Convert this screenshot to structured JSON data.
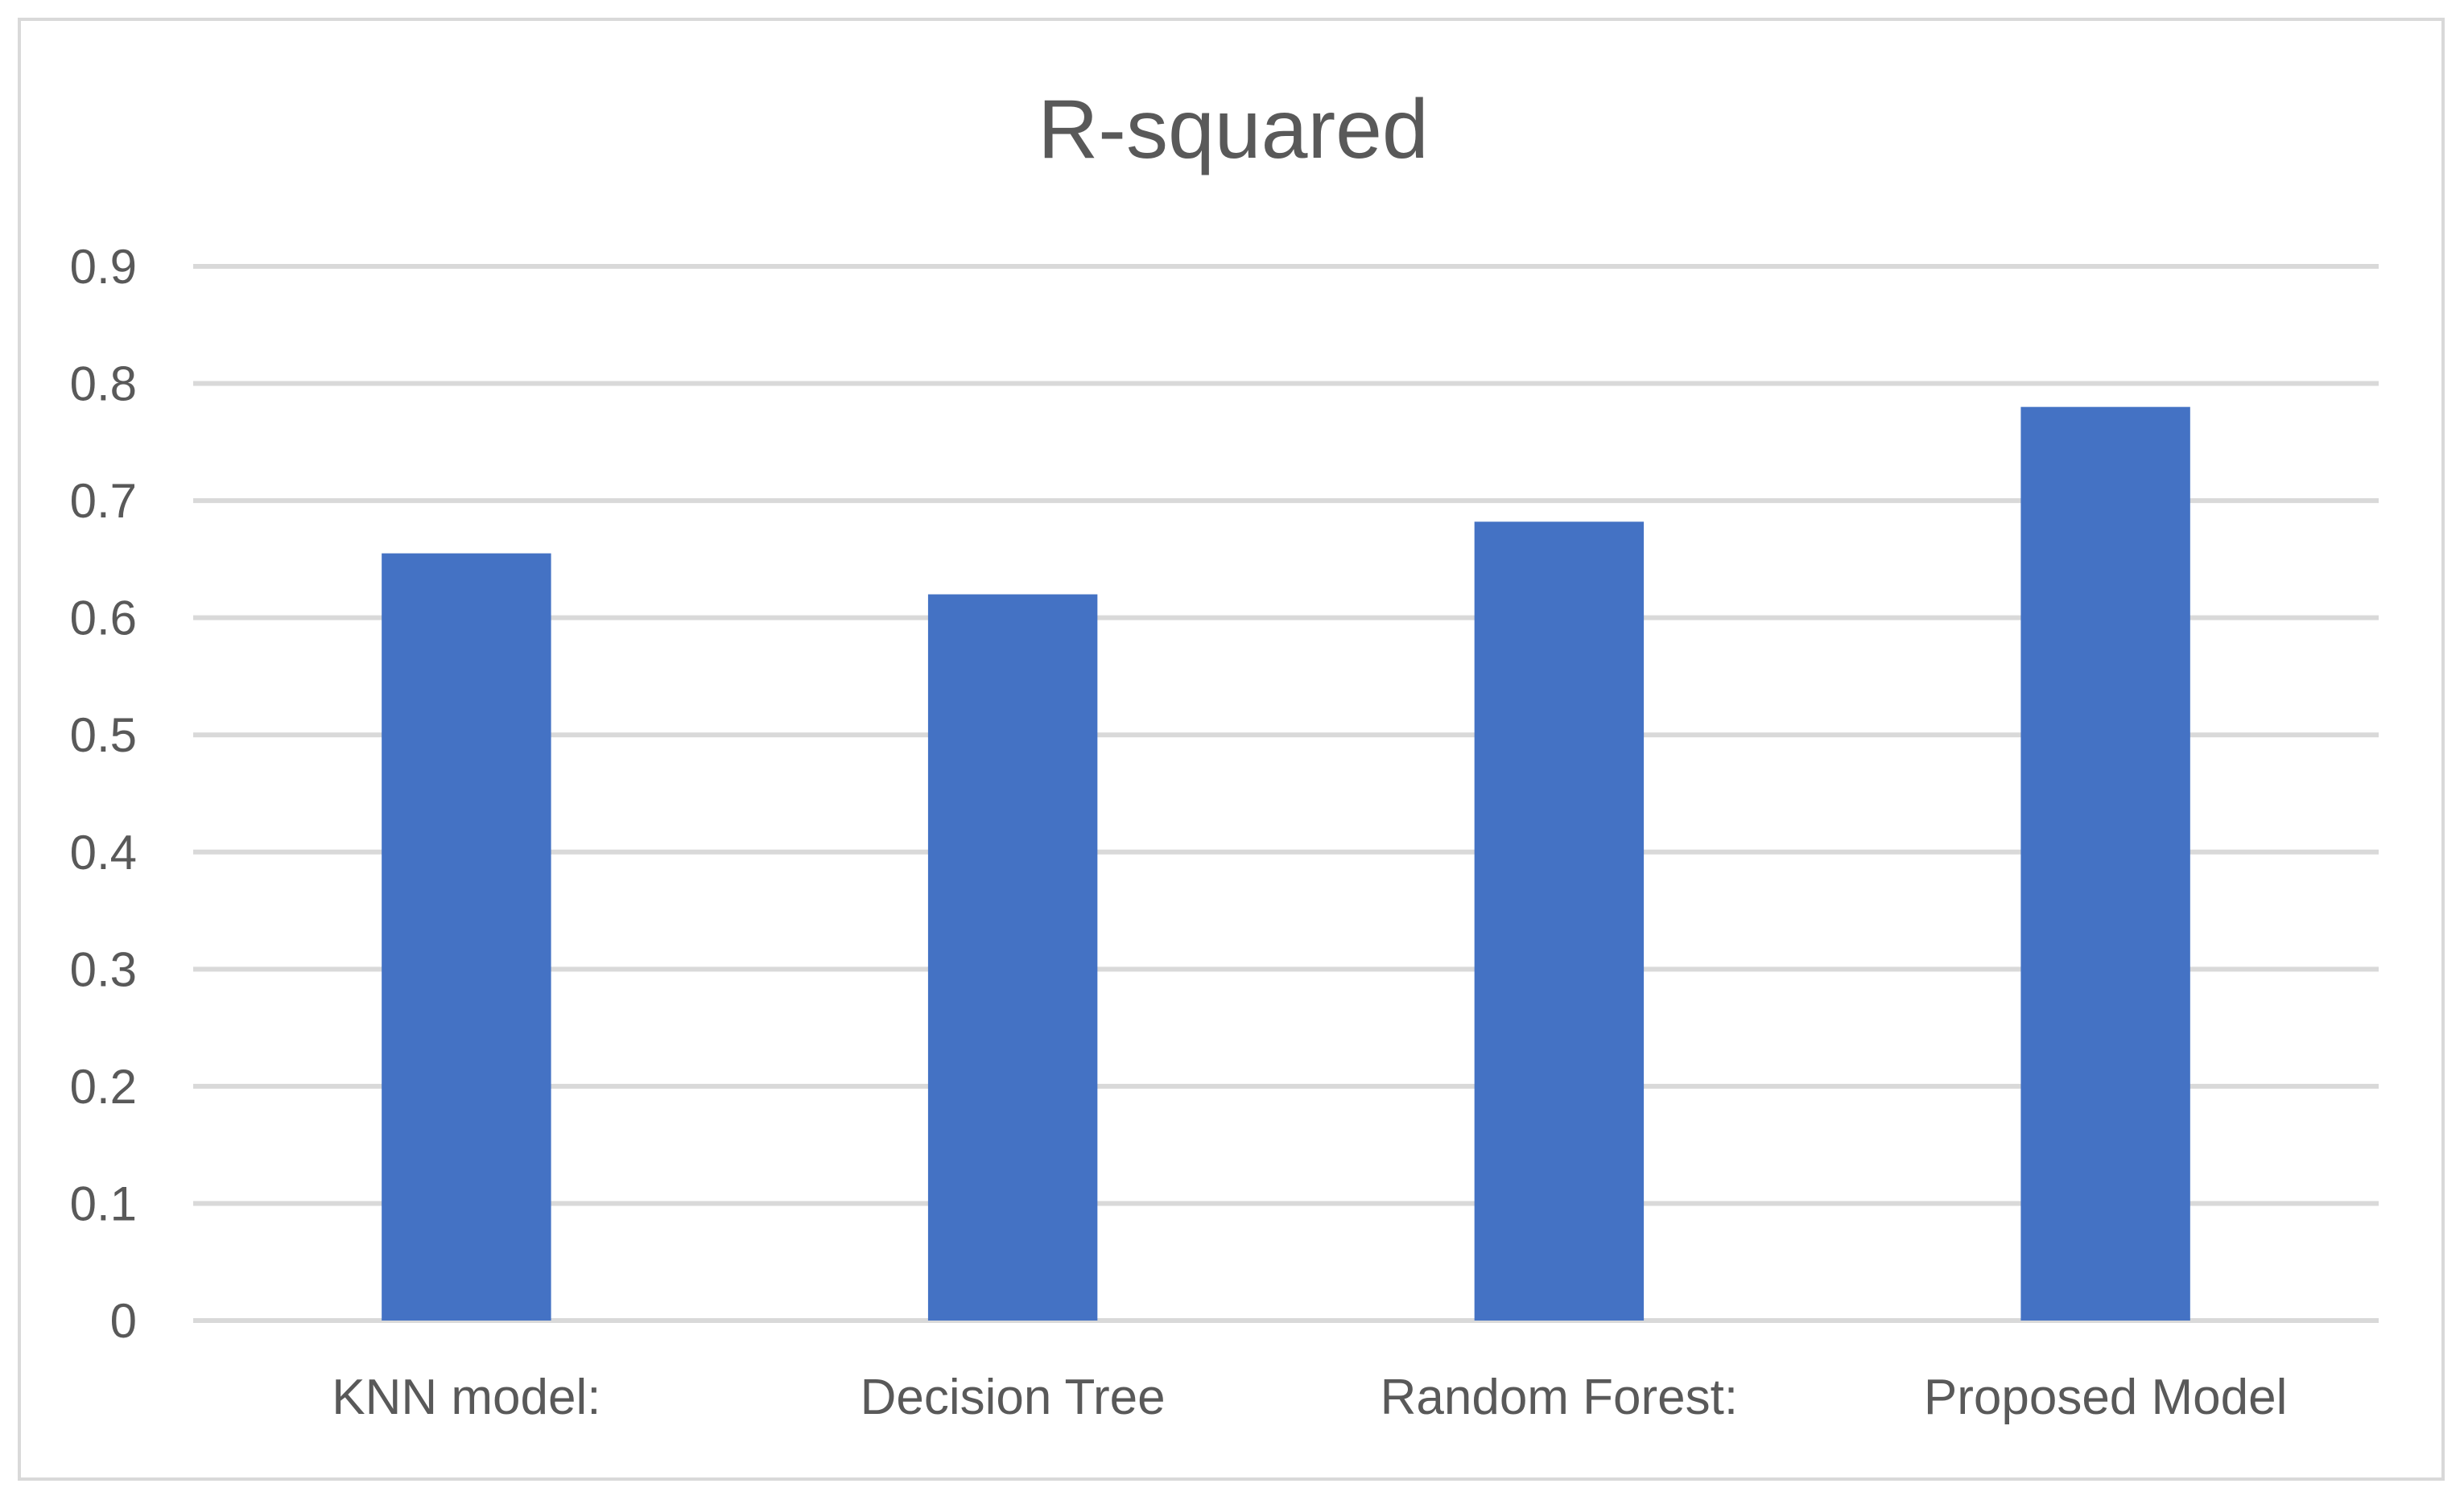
{
  "chart_data": {
    "type": "bar",
    "title": "R-squared",
    "xlabel": "",
    "ylabel": "",
    "categories": [
      "KNN model:",
      "Decision Tree",
      "Random Forest:",
      "Proposed Model"
    ],
    "values": [
      0.655,
      0.62,
      0.682,
      0.78
    ],
    "ylim": [
      0,
      0.9
    ],
    "yticks": [
      "0",
      "0.1",
      "0.2",
      "0.3",
      "0.4",
      "0.5",
      "0.6",
      "0.7",
      "0.8",
      "0.9"
    ],
    "grid": true,
    "legend": "none",
    "colors": {
      "bar": "#4472c4",
      "grid": "#d9d9d9",
      "text": "#595959"
    }
  }
}
